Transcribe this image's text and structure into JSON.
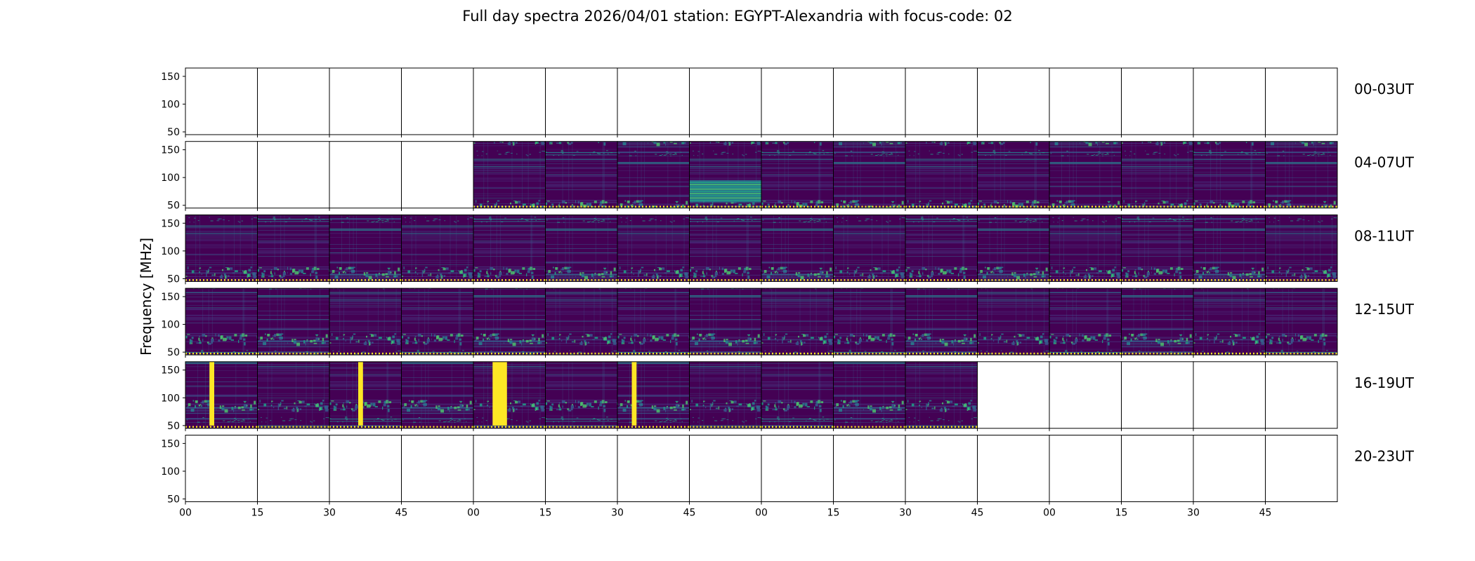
{
  "chart_data": {
    "type": "heatmap",
    "title": "Full day spectra 2026/04/01 station: EGYPT-Alexandria with focus-code: 02",
    "ylabel": "Frequency [MHz]",
    "xlabel": "",
    "colormap": "viridis",
    "colors": {
      "low": "#440154",
      "mid": "#21918c",
      "high": "#fde725",
      "frame": "#000000",
      "dots": "#fde725"
    },
    "yticks": [
      50,
      100,
      150
    ],
    "ylim": [
      45,
      165
    ],
    "xtick_labels": [
      "00",
      "15",
      "30",
      "45",
      "00",
      "15",
      "30",
      "45",
      "00",
      "15",
      "30",
      "45",
      "00",
      "15",
      "30",
      "45"
    ],
    "panels_per_row": 16,
    "panel_minutes": 15,
    "rows": [
      {
        "label": "00-03UT",
        "panels": [
          "empty",
          "empty",
          "empty",
          "empty",
          "empty",
          "empty",
          "empty",
          "empty",
          "empty",
          "empty",
          "empty",
          "empty",
          "empty",
          "empty",
          "empty",
          "empty"
        ]
      },
      {
        "label": "04-07UT",
        "panels": [
          "empty",
          "empty",
          "empty",
          "empty",
          "data",
          "data",
          "data",
          "data",
          "data",
          "data",
          "data",
          "data",
          "data",
          "data",
          "data",
          "data"
        ]
      },
      {
        "label": "08-11UT",
        "panels": [
          "data",
          "data",
          "data",
          "data",
          "data",
          "data",
          "data",
          "data",
          "data",
          "data",
          "data",
          "data",
          "data",
          "data",
          "data",
          "data"
        ]
      },
      {
        "label": "12-15UT",
        "panels": [
          "data",
          "data",
          "data",
          "data",
          "data",
          "data",
          "data",
          "data",
          "data",
          "data",
          "data",
          "data",
          "data",
          "data",
          "data",
          "data"
        ]
      },
      {
        "label": "16-19UT",
        "panels": [
          "data",
          "data",
          "data",
          "data",
          "data",
          "data",
          "data",
          "data",
          "data",
          "data",
          "data",
          "empty",
          "empty",
          "empty",
          "empty",
          "empty"
        ]
      },
      {
        "label": "20-23UT",
        "panels": [
          "empty",
          "empty",
          "empty",
          "empty",
          "empty",
          "empty",
          "empty",
          "empty",
          "empty",
          "empty",
          "empty",
          "empty",
          "empty",
          "empty",
          "empty",
          "empty"
        ]
      }
    ],
    "saturated_bursts": [
      {
        "row": "16-19UT",
        "panel": 0,
        "start_min": 5,
        "end_min": 6
      },
      {
        "row": "16-19UT",
        "panel": 2,
        "start_min": 6,
        "end_min": 7
      },
      {
        "row": "16-19UT",
        "panel": 4,
        "start_min": 4,
        "end_min": 7
      },
      {
        "row": "16-19UT",
        "panel": 6,
        "start_min": 3,
        "end_min": 4
      }
    ],
    "grid": false
  }
}
